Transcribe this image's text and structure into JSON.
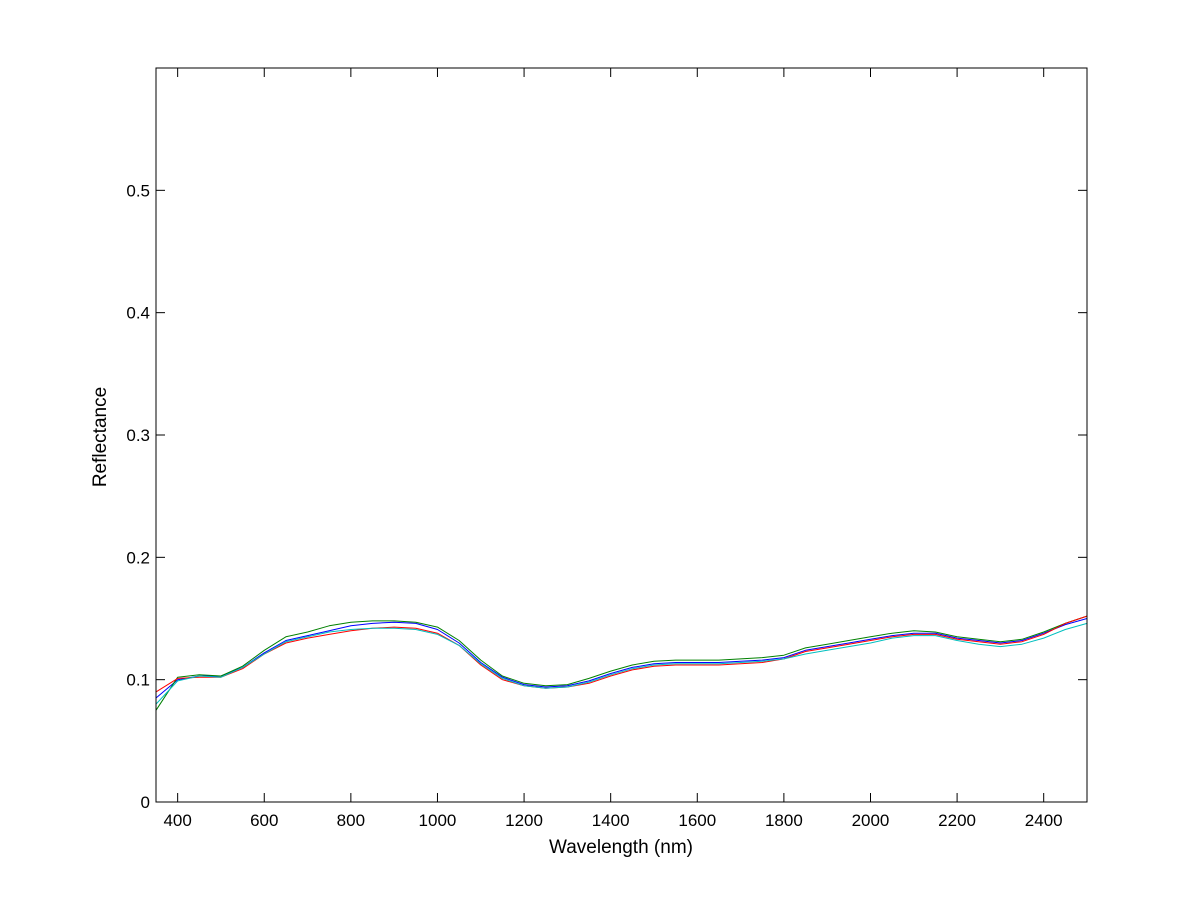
{
  "chart_data": {
    "type": "line",
    "title": "",
    "xlabel": "Wavelength (nm)",
    "ylabel": "Reflectance",
    "xlim": [
      350,
      2500
    ],
    "ylim": [
      0,
      0.6
    ],
    "xticks": [
      "400",
      "600",
      "800",
      "1000",
      "1200",
      "1400",
      "1600",
      "1800",
      "2000",
      "2200",
      "2400"
    ],
    "yticks": [
      "0",
      "0.1",
      "0.2",
      "0.3",
      "0.4",
      "0.5"
    ],
    "grid": false,
    "legend": "none",
    "x": [
      350,
      400,
      450,
      500,
      550,
      600,
      650,
      700,
      750,
      800,
      850,
      900,
      950,
      1000,
      1050,
      1100,
      1150,
      1200,
      1250,
      1300,
      1350,
      1400,
      1450,
      1500,
      1550,
      1600,
      1650,
      1700,
      1750,
      1800,
      1850,
      1900,
      1950,
      2000,
      2050,
      2100,
      2150,
      2200,
      2250,
      2300,
      2350,
      2400,
      2450,
      2500
    ],
    "series": [
      {
        "color": "#0000ff",
        "values": [
          0.085,
          0.1,
          0.103,
          0.103,
          0.11,
          0.122,
          0.132,
          0.136,
          0.14,
          0.144,
          0.146,
          0.147,
          0.146,
          0.141,
          0.13,
          0.114,
          0.102,
          0.096,
          0.094,
          0.095,
          0.099,
          0.105,
          0.11,
          0.113,
          0.114,
          0.114,
          0.114,
          0.115,
          0.116,
          0.118,
          0.124,
          0.127,
          0.13,
          0.133,
          0.136,
          0.138,
          0.138,
          0.134,
          0.132,
          0.13,
          0.132,
          0.138,
          0.145,
          0.15
        ]
      },
      {
        "color": "#008000",
        "values": [
          0.075,
          0.102,
          0.104,
          0.103,
          0.111,
          0.124,
          0.135,
          0.139,
          0.144,
          0.147,
          0.148,
          0.148,
          0.147,
          0.143,
          0.132,
          0.116,
          0.103,
          0.097,
          0.095,
          0.096,
          0.101,
          0.107,
          0.112,
          0.115,
          0.116,
          0.116,
          0.116,
          0.117,
          0.118,
          0.12,
          0.126,
          0.129,
          0.132,
          0.135,
          0.138,
          0.14,
          0.139,
          0.135,
          0.133,
          0.131,
          0.133,
          0.139,
          0.146,
          0.152
        ]
      },
      {
        "color": "#ff0000",
        "values": [
          0.09,
          0.101,
          0.102,
          0.102,
          0.109,
          0.121,
          0.13,
          0.134,
          0.137,
          0.14,
          0.142,
          0.143,
          0.142,
          0.138,
          0.128,
          0.112,
          0.1,
          0.095,
          0.093,
          0.094,
          0.097,
          0.103,
          0.108,
          0.111,
          0.112,
          0.112,
          0.112,
          0.113,
          0.114,
          0.117,
          0.123,
          0.126,
          0.129,
          0.132,
          0.135,
          0.137,
          0.137,
          0.133,
          0.131,
          0.129,
          0.131,
          0.137,
          0.146,
          0.152
        ]
      },
      {
        "color": "#00bfbf",
        "values": [
          0.08,
          0.099,
          0.103,
          0.102,
          0.11,
          0.121,
          0.131,
          0.135,
          0.139,
          0.141,
          0.142,
          0.142,
          0.141,
          0.137,
          0.128,
          0.113,
          0.101,
          0.095,
          0.093,
          0.094,
          0.098,
          0.104,
          0.109,
          0.112,
          0.113,
          0.113,
          0.113,
          0.114,
          0.115,
          0.117,
          0.121,
          0.124,
          0.127,
          0.13,
          0.134,
          0.136,
          0.136,
          0.132,
          0.129,
          0.127,
          0.129,
          0.134,
          0.141,
          0.146
        ]
      }
    ]
  }
}
